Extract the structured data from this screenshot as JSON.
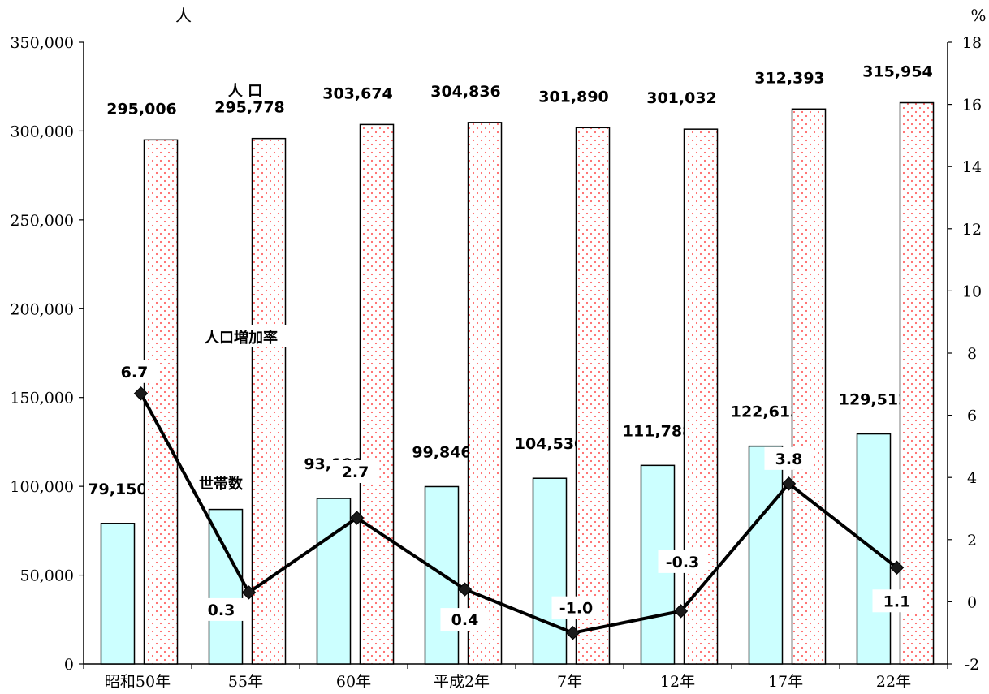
{
  "chart_data": {
    "type": "bar",
    "categories": [
      "昭和50年",
      "55年",
      "60年",
      "平成2年",
      "7年",
      "12年",
      "17年",
      "22年"
    ],
    "series": [
      {
        "name": "世帯数",
        "kind": "bar",
        "axis": "left",
        "values": [
          79150,
          87000,
          93199,
          99846,
          104530,
          111788,
          122613,
          129512
        ],
        "labels": [
          "79,150",
          "",
          "93,199",
          "99,846",
          "104,530",
          "111,788",
          "122,613",
          "129,512"
        ],
        "color": "#ccffff"
      },
      {
        "name": "人 口",
        "kind": "bar",
        "axis": "left",
        "values": [
          295006,
          295778,
          303674,
          304836,
          301890,
          301032,
          312393,
          315954
        ],
        "labels": [
          "295,006",
          "295,778",
          "303,674",
          "304,836",
          "301,890",
          "301,032",
          "312,393",
          "315,954"
        ],
        "color": "#ff6666"
      },
      {
        "name": "人口増加率",
        "kind": "line",
        "axis": "right",
        "values": [
          6.7,
          0.3,
          2.7,
          0.4,
          -1.0,
          -0.3,
          3.8,
          1.1
        ],
        "labels": [
          "6.7",
          "0.3",
          "2.7",
          "0.4",
          "-1.0",
          "-0.3",
          "3.8",
          "1.1"
        ],
        "color": "#000000"
      }
    ],
    "y_left": {
      "unit": "人",
      "min": 0,
      "max": 350000,
      "step": 50000,
      "tick_labels": [
        "0",
        "50,000",
        "100,000",
        "150,000",
        "200,000",
        "250,000",
        "300,000",
        "350,000"
      ]
    },
    "y_right": {
      "unit": "%",
      "min": -2,
      "max": 18,
      "step": 2,
      "tick_labels": [
        "-2",
        "0",
        "2",
        "4",
        "6",
        "8",
        "10",
        "12",
        "14",
        "16",
        "18"
      ]
    },
    "grid": false
  }
}
